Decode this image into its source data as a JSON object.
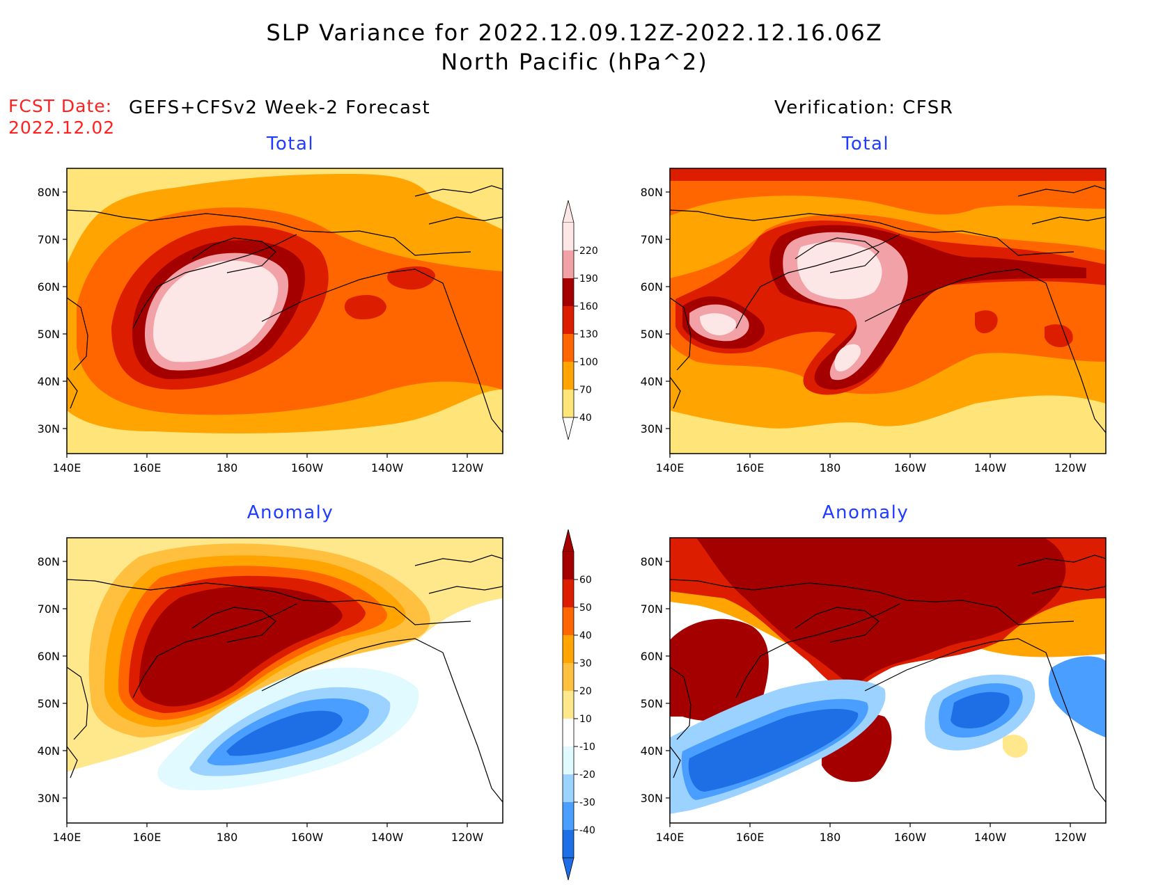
{
  "title_line1": "SLP Variance for 2022.12.09.12Z-2022.12.16.06Z",
  "title_line2": "North Pacific (hPa^2)",
  "fcst_label": "FCST Date:",
  "fcst_date": "2022.12.02",
  "left_column_title": "GEFS+CFSv2 Week-2 Forecast",
  "right_column_title": "Verification: CFSR",
  "panels": {
    "forecast_total": {
      "title": "Total"
    },
    "verification_total": {
      "title": "Total"
    },
    "forecast_anomaly": {
      "title": "Anomaly"
    },
    "verification_anomaly": {
      "title": "Anomaly"
    }
  },
  "axes": {
    "lat_ticks": [
      "80N",
      "70N",
      "60N",
      "50N",
      "40N",
      "30N"
    ],
    "lon_ticks": [
      "140E",
      "160E",
      "180",
      "160W",
      "140W",
      "120W"
    ]
  },
  "total_colorbar": {
    "levels": [
      "220",
      "190",
      "160",
      "130",
      "100",
      "70",
      "40"
    ],
    "colors": [
      "#fde6e6",
      "#f2a2a6",
      "#a50000",
      "#dd1d00",
      "#ff6600",
      "#ffa400",
      "#ffe579"
    ]
  },
  "anomaly_colorbar": {
    "levels": [
      "60",
      "50",
      "40",
      "30",
      "20",
      "10",
      "-10",
      "-20",
      "-30",
      "-40"
    ],
    "colors": [
      "#a50000",
      "#dd1d00",
      "#ff6600",
      "#ffa400",
      "#ffc040",
      "#ffe88c",
      "#ffffff",
      "#e0faff",
      "#9cd2ff",
      "#4a9eff",
      "#1e6ee6"
    ]
  }
}
